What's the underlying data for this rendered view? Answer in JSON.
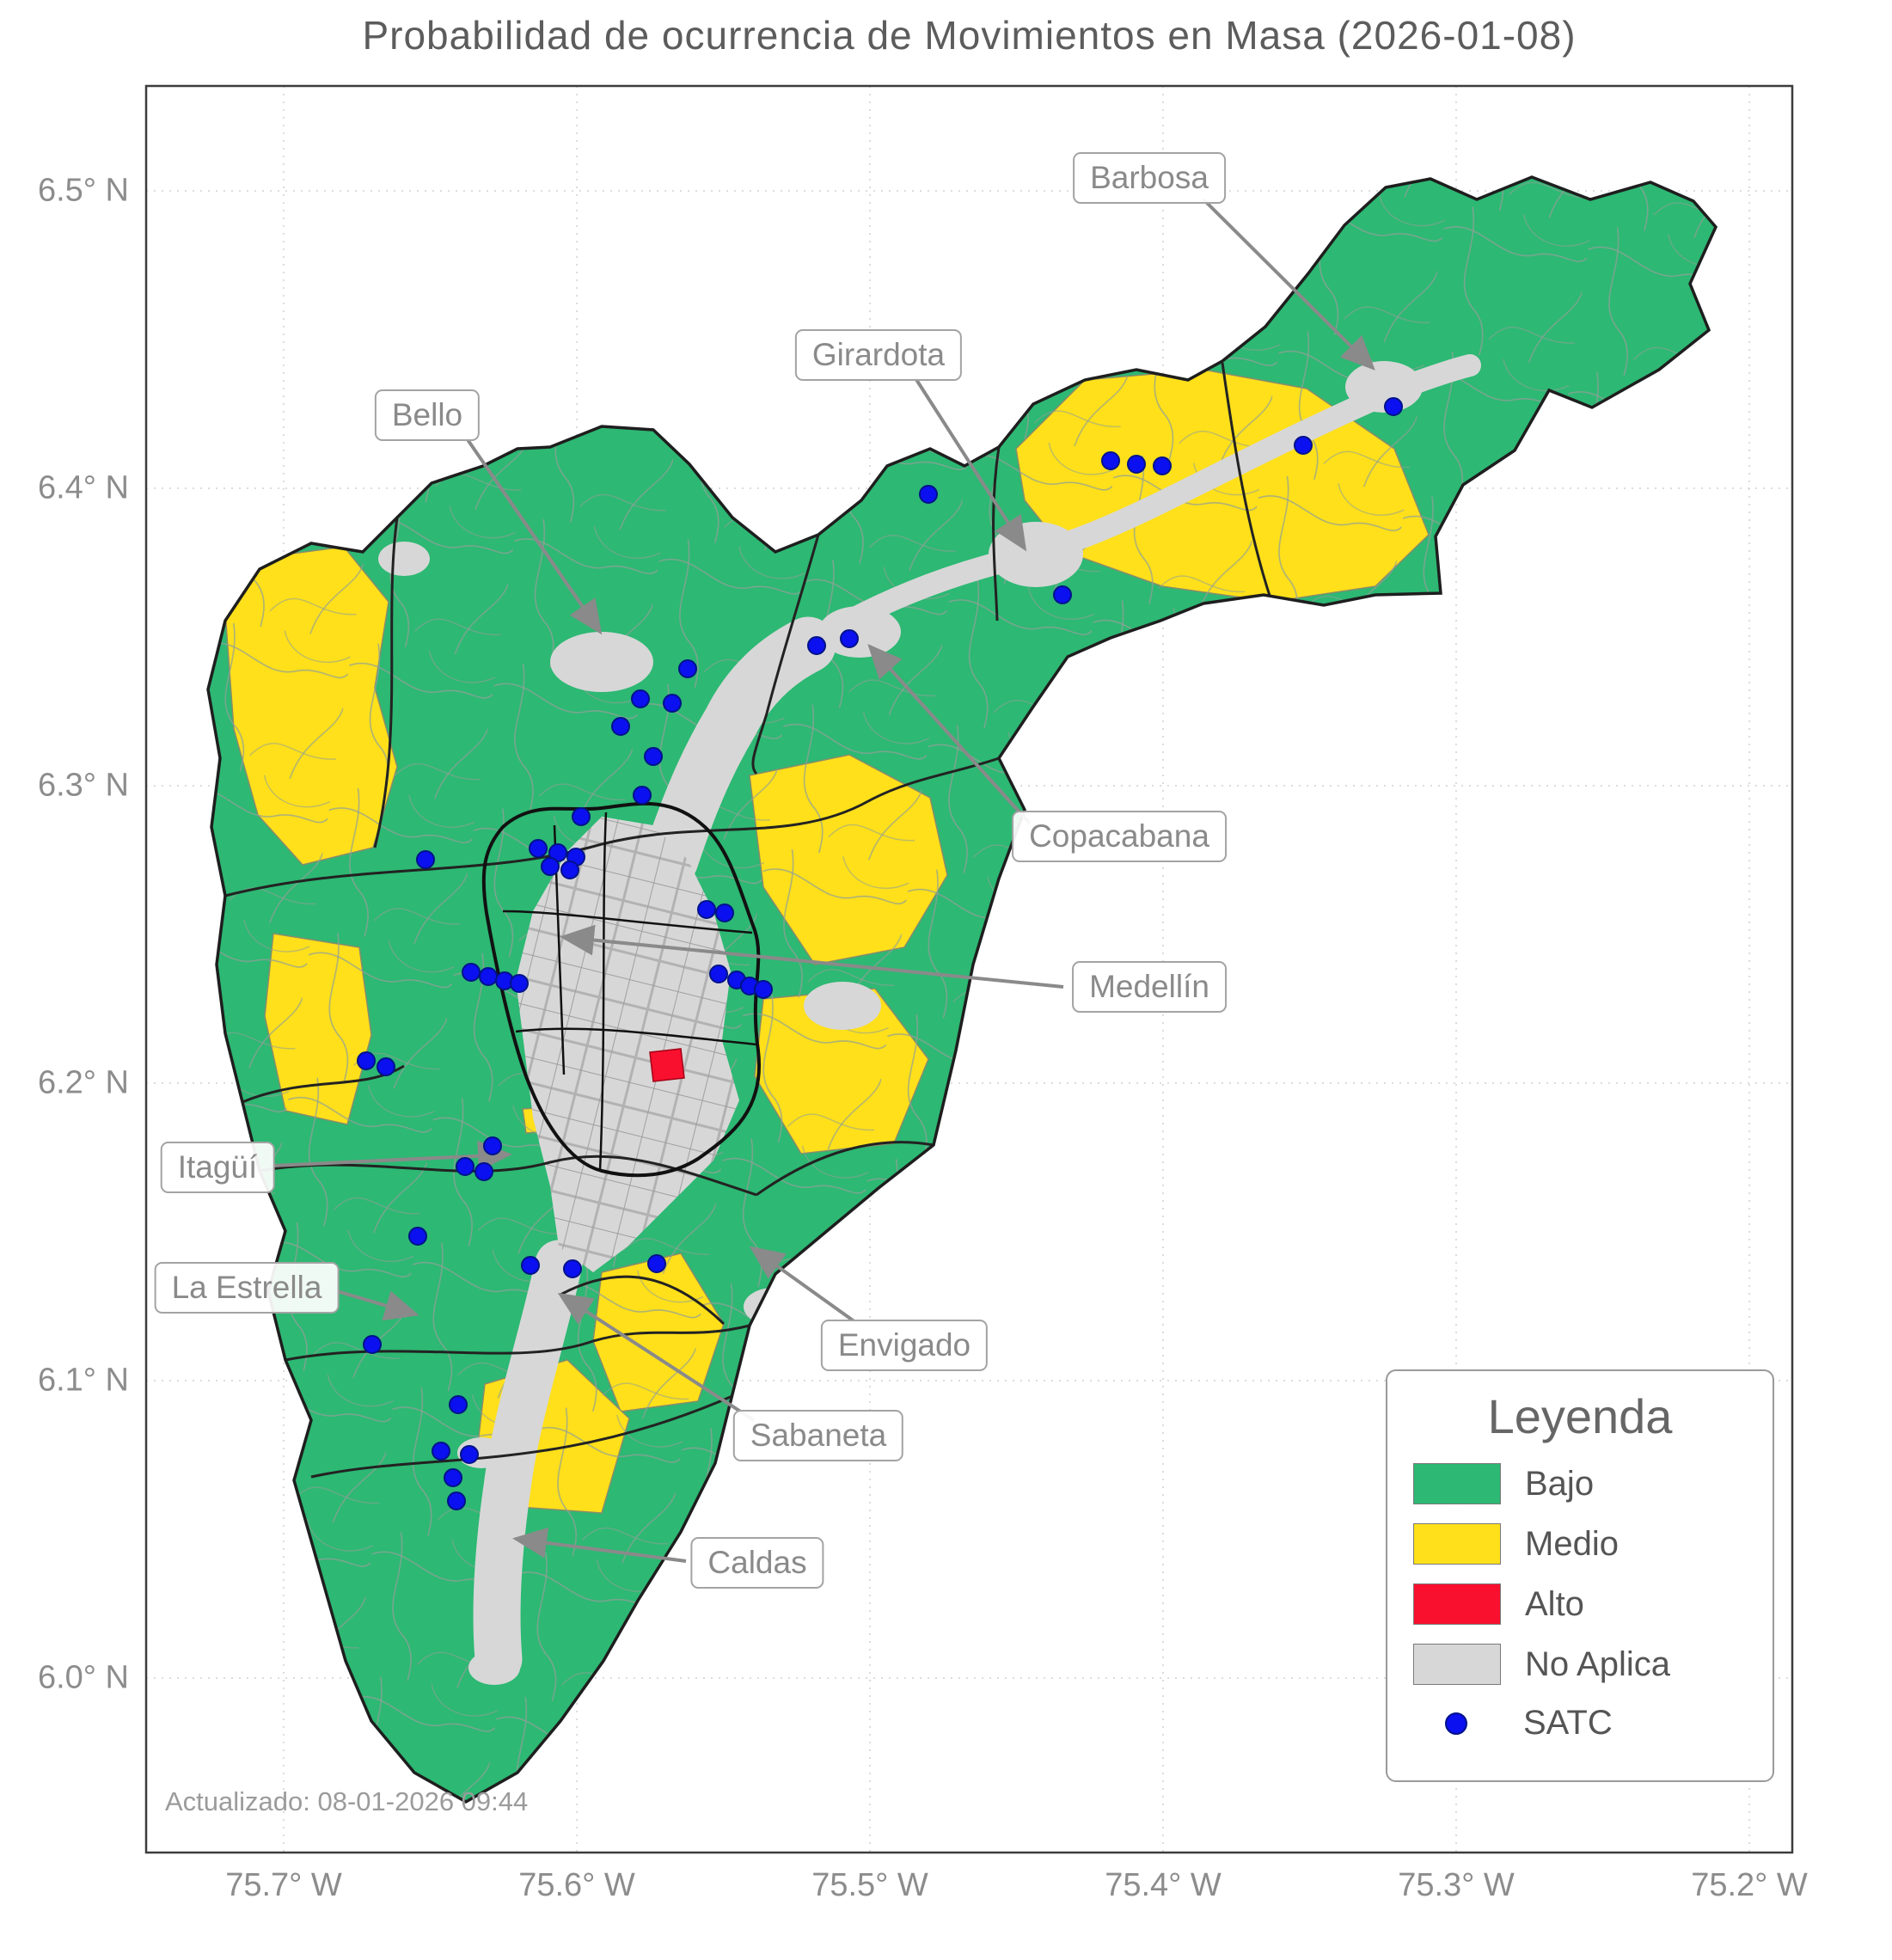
{
  "title": "Probabilidad de ocurrencia de Movimientos en Masa (2026-01-08)",
  "updated": "Actualizado: 08-01-2026 09:44",
  "axes": {
    "x_ticks": [
      "75.7° W",
      "75.6° W",
      "75.5° W",
      "75.4° W",
      "75.3° W",
      "75.2° W"
    ],
    "y_ticks": [
      "6.5° N",
      "6.4° N",
      "6.3° N",
      "6.2° N",
      "6.1° N",
      "6.0° N"
    ]
  },
  "legend": {
    "title": "Leyenda",
    "items": [
      {
        "label": "Bajo"
      },
      {
        "label": "Medio"
      },
      {
        "label": "Alto"
      },
      {
        "label": "No Aplica"
      },
      {
        "label": "SATC"
      }
    ]
  },
  "map_labels": {
    "barbosa": "Barbosa",
    "girardota": "Girardota",
    "bello": "Bello",
    "copacabana": "Copacabana",
    "medellin": "Medellín",
    "itagui": "Itagüí",
    "la_estrella": "La Estrella",
    "envigado": "Envigado",
    "sabaneta": "Sabaneta",
    "caldas": "Caldas"
  },
  "colors": {
    "bajo": "#2db873",
    "medio": "#ffe01a",
    "alto": "#f8102e",
    "noaplica": "#d7d7d7",
    "satc": "#0b10f0"
  },
  "satc_points": [
    [
      1621,
      473
    ],
    [
      1516,
      518
    ],
    [
      1352,
      542
    ],
    [
      1322,
      540
    ],
    [
      1292,
      536
    ],
    [
      1236,
      692
    ],
    [
      1080,
      575
    ],
    [
      988,
      743
    ],
    [
      950,
      751
    ],
    [
      800,
      778
    ],
    [
      782,
      818
    ],
    [
      745,
      813
    ],
    [
      722,
      845
    ],
    [
      760,
      880
    ],
    [
      747,
      925
    ],
    [
      676,
      950
    ],
    [
      626,
      987
    ],
    [
      649,
      992
    ],
    [
      670,
      997
    ],
    [
      640,
      1008
    ],
    [
      663,
      1012
    ],
    [
      495,
      1000
    ],
    [
      822,
      1058
    ],
    [
      843,
      1062
    ],
    [
      836,
      1133
    ],
    [
      857,
      1140
    ],
    [
      872,
      1147
    ],
    [
      888,
      1151
    ],
    [
      548,
      1131
    ],
    [
      568,
      1136
    ],
    [
      587,
      1141
    ],
    [
      604,
      1144
    ],
    [
      426,
      1234
    ],
    [
      449,
      1241
    ],
    [
      573,
      1333
    ],
    [
      541,
      1357
    ],
    [
      563,
      1363
    ],
    [
      486,
      1438
    ],
    [
      617,
      1472
    ],
    [
      666,
      1476
    ],
    [
      764,
      1470
    ],
    [
      433,
      1564
    ],
    [
      533,
      1634
    ],
    [
      513,
      1688
    ],
    [
      546,
      1692
    ],
    [
      527,
      1719
    ],
    [
      531,
      1746
    ]
  ]
}
